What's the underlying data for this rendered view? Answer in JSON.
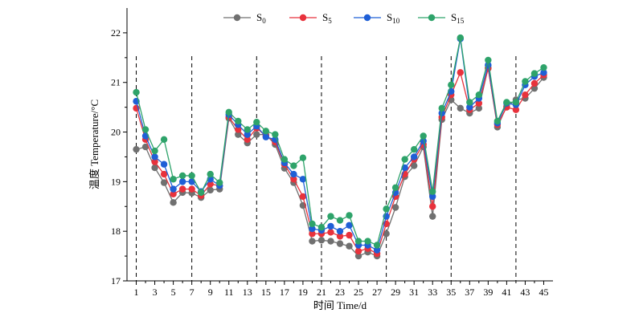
{
  "chart_data": {
    "type": "line",
    "title": "",
    "xlabel": "时间 Time/d",
    "ylabel": "温度 Temperature/°C",
    "xlim": [
      0,
      46
    ],
    "ylim": [
      17,
      22.5
    ],
    "xticks": [
      1,
      3,
      5,
      7,
      9,
      11,
      13,
      15,
      17,
      19,
      21,
      23,
      25,
      27,
      29,
      31,
      33,
      35,
      37,
      39,
      41,
      43,
      45
    ],
    "yticks": [
      17,
      18,
      19,
      20,
      21,
      22
    ],
    "grid": false,
    "legend_position": "top-center",
    "vlines": [
      1,
      7,
      14,
      21,
      28,
      35,
      42
    ],
    "x": [
      1,
      2,
      3,
      4,
      5,
      6,
      7,
      8,
      9,
      10,
      11,
      12,
      13,
      14,
      15,
      16,
      17,
      18,
      19,
      20,
      21,
      22,
      23,
      24,
      25,
      26,
      27,
      28,
      29,
      30,
      31,
      32,
      33,
      34,
      35,
      36,
      37,
      38,
      39,
      40,
      41,
      42,
      43,
      44,
      45
    ],
    "series": [
      {
        "name": "S0",
        "base": "S",
        "sub": "0",
        "color": "#707070",
        "values": [
          19.65,
          19.7,
          19.28,
          18.98,
          18.58,
          18.78,
          18.77,
          18.68,
          18.83,
          18.85,
          20.28,
          19.95,
          19.78,
          19.95,
          19.95,
          19.75,
          19.27,
          18.98,
          18.52,
          17.8,
          17.82,
          17.8,
          17.75,
          17.7,
          17.5,
          17.58,
          17.5,
          17.95,
          18.48,
          19.1,
          19.32,
          19.7,
          18.3,
          20.25,
          20.65,
          20.48,
          20.38,
          20.48,
          21.3,
          20.1,
          20.52,
          20.65,
          20.68,
          20.88,
          21.1
        ]
      },
      {
        "name": "S5",
        "base": "S",
        "sub": "5",
        "color": "#e8323c",
        "values": [
          20.48,
          19.85,
          19.4,
          19.15,
          18.75,
          18.85,
          18.85,
          18.72,
          18.95,
          18.92,
          20.3,
          20.05,
          19.85,
          20.08,
          19.92,
          19.8,
          19.35,
          19.05,
          18.7,
          17.95,
          17.95,
          17.98,
          17.9,
          17.92,
          17.6,
          17.65,
          17.55,
          18.15,
          18.7,
          19.15,
          19.45,
          19.75,
          18.5,
          20.3,
          20.75,
          21.2,
          20.45,
          20.58,
          21.28,
          20.15,
          20.5,
          20.45,
          20.75,
          20.98,
          21.15
        ]
      },
      {
        "name": "S10",
        "base": "S",
        "sub": "10",
        "color": "#1f5fd6",
        "values": [
          20.62,
          19.92,
          19.5,
          19.35,
          18.85,
          19.0,
          19.0,
          18.8,
          19.05,
          18.92,
          20.35,
          20.15,
          19.95,
          20.12,
          19.9,
          19.85,
          19.38,
          19.15,
          19.05,
          18.05,
          18.02,
          18.1,
          18.0,
          18.12,
          17.72,
          17.72,
          17.62,
          18.3,
          18.78,
          19.28,
          19.5,
          19.82,
          18.7,
          20.38,
          20.82,
          21.88,
          20.5,
          20.68,
          21.35,
          20.18,
          20.58,
          20.55,
          20.95,
          21.12,
          21.2
        ]
      },
      {
        "name": "S15",
        "base": "S",
        "sub": "15",
        "color": "#2ea36a",
        "values": [
          20.8,
          20.05,
          19.62,
          19.85,
          19.05,
          19.12,
          19.12,
          18.78,
          19.15,
          18.98,
          20.4,
          20.22,
          20.05,
          20.2,
          20.02,
          19.95,
          19.45,
          19.32,
          19.48,
          18.15,
          18.08,
          18.3,
          18.22,
          18.32,
          17.8,
          17.8,
          17.72,
          18.45,
          18.88,
          19.45,
          19.65,
          19.92,
          18.8,
          20.48,
          20.95,
          21.9,
          20.6,
          20.75,
          21.45,
          20.22,
          20.6,
          20.6,
          21.02,
          21.18,
          21.3
        ]
      }
    ]
  }
}
